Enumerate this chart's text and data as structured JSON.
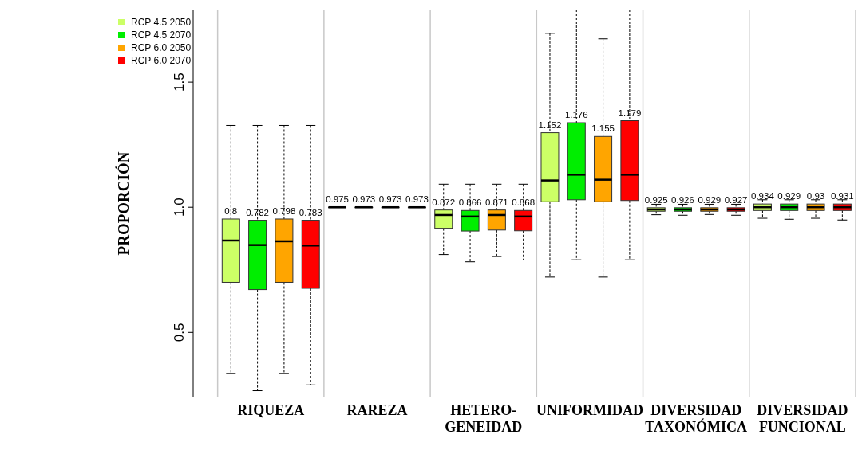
{
  "chart_data": {
    "type": "box",
    "categories": [
      "RIQUEZA",
      "RAREZA",
      "HETERO-\nGENEIDAD",
      "UNIFORMIDAD",
      "DIVERSIDAD\nTAXONÓMICA",
      "DIVERSIDAD\nFUNCIONAL"
    ],
    "ylabel": "PROPORCIÓN",
    "ylim": [
      0.24,
      1.79
    ],
    "yticks": [
      0.5,
      {
        "value": 1,
        "label": "1.0"
      },
      1.5
    ],
    "grid": "x",
    "legend": "top left",
    "series": [
      {
        "name": "RCP 4.5 2050",
        "color": "#ccff66",
        "value_labels": [
          "0.8",
          "0.975",
          "0.872",
          "1.152",
          "0.925",
          "0.934"
        ],
        "boxes": [
          {
            "low": 0.336,
            "q1": 0.7,
            "median": 0.867,
            "q3": 0.953,
            "high": 1.327
          },
          {
            "low": 1.0,
            "q1": 1.0,
            "median": 1.0,
            "q3": 1.0,
            "high": 1.0
          },
          {
            "low": 0.811,
            "q1": 0.916,
            "median": 0.969,
            "q3": 0.989,
            "high": 1.092
          },
          {
            "low": 0.721,
            "q1": 1.022,
            "median": 1.107,
            "q3": 1.298,
            "high": 1.695
          },
          {
            "low": 0.97,
            "q1": 0.984,
            "median": 0.991,
            "q3": 0.998,
            "high": 1.012
          },
          {
            "low": 0.956,
            "q1": 0.987,
            "median": 1.0,
            "q3": 1.013,
            "high": 1.03
          }
        ]
      },
      {
        "name": "RCP 4.5 2070",
        "color": "#00ee00",
        "value_labels": [
          "0.782",
          "0.973",
          "0.866",
          "1.176",
          "0.926",
          "0.929"
        ],
        "boxes": [
          {
            "low": 0.267,
            "q1": 0.671,
            "median": 0.849,
            "q3": 0.948,
            "high": 1.327
          },
          {
            "low": 1.0,
            "q1": 1.0,
            "median": 1.0,
            "q3": 1.0,
            "high": 1.0
          },
          {
            "low": 0.782,
            "q1": 0.905,
            "median": 0.963,
            "q3": 0.987,
            "high": 1.092
          },
          {
            "low": 0.79,
            "q1": 1.03,
            "median": 1.13,
            "q3": 1.338,
            "high": 1.79
          },
          {
            "low": 0.968,
            "q1": 0.984,
            "median": 0.991,
            "q3": 0.998,
            "high": 1.012
          },
          {
            "low": 0.952,
            "q1": 0.987,
            "median": 1.0,
            "q3": 1.013,
            "high": 1.03
          }
        ]
      },
      {
        "name": "RCP 6.0 2050",
        "color": "#ffa500",
        "value_labels": [
          "0.798",
          "0.973",
          "0.871",
          "1.155",
          "0.929",
          "0.93"
        ],
        "boxes": [
          {
            "low": 0.336,
            "q1": 0.7,
            "median": 0.864,
            "q3": 0.953,
            "high": 1.327
          },
          {
            "low": 1.0,
            "q1": 1.0,
            "median": 1.0,
            "q3": 1.0,
            "high": 1.0
          },
          {
            "low": 0.803,
            "q1": 0.909,
            "median": 0.969,
            "q3": 0.989,
            "high": 1.092
          },
          {
            "low": 0.721,
            "q1": 1.022,
            "median": 1.11,
            "q3": 1.283,
            "high": 1.673
          },
          {
            "low": 0.971,
            "q1": 0.984,
            "median": 0.991,
            "q3": 0.998,
            "high": 1.012
          },
          {
            "low": 0.956,
            "q1": 0.987,
            "median": 1.0,
            "q3": 1.013,
            "high": 1.03
          }
        ]
      },
      {
        "name": "RCP 6.0 2070",
        "color": "#ff0000",
        "value_labels": [
          "0.783",
          "0.973",
          "0.868",
          "1.179",
          "0.927",
          "0.931"
        ],
        "boxes": [
          {
            "low": 0.29,
            "q1": 0.676,
            "median": 0.847,
            "q3": 0.948,
            "high": 1.327
          },
          {
            "low": 1.0,
            "q1": 1.0,
            "median": 1.0,
            "q3": 1.0,
            "high": 1.0
          },
          {
            "low": 0.789,
            "q1": 0.906,
            "median": 0.963,
            "q3": 0.987,
            "high": 1.092
          },
          {
            "low": 0.79,
            "q1": 1.027,
            "median": 1.13,
            "q3": 1.346,
            "high": 1.79
          },
          {
            "low": 0.968,
            "q1": 0.984,
            "median": 0.991,
            "q3": 0.998,
            "high": 1.012
          },
          {
            "low": 0.949,
            "q1": 0.987,
            "median": 1.0,
            "q3": 1.013,
            "high": 1.03
          }
        ]
      }
    ]
  }
}
